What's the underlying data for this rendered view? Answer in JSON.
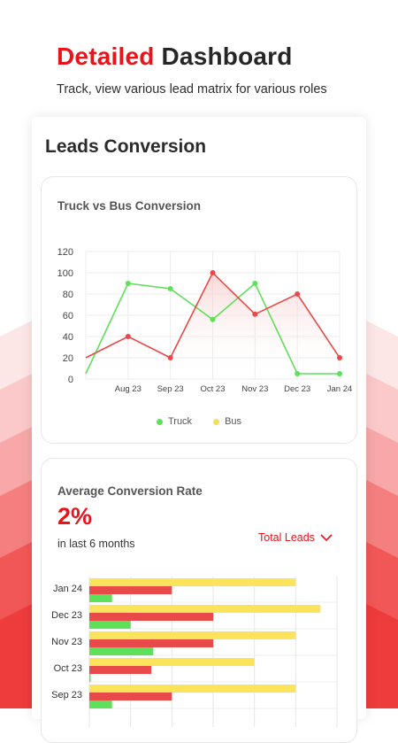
{
  "header": {
    "title_accent": "Detailed",
    "title_rest": "Dashboard",
    "subtitle": "Track, view various lead matrix for various roles"
  },
  "card": {
    "title": "Leads Conversion"
  },
  "colors": {
    "accent": "#e8141b",
    "truck": "#5ee05a",
    "bus": "#e84a4a",
    "bus_legend": "#f7dc5a",
    "total_leads_bar": "#fbe35c"
  },
  "line_chart": {
    "title": "Truck vs Bus Conversion",
    "legend": [
      {
        "label": "Truck",
        "color": "#5ee05a"
      },
      {
        "label": "Bus",
        "color": "#f7dc5a"
      }
    ]
  },
  "rate_panel": {
    "title": "Average Conversion Rate",
    "value": "2%",
    "caption": "in last 6 months",
    "dropdown_label": "Total Leads",
    "dropdown_icon": "chevron-down-icon"
  },
  "chart_data": [
    {
      "type": "line",
      "title": "Truck vs Bus Conversion",
      "x": [
        "",
        "Aug 23",
        "Sep 23",
        "Oct 23",
        "Nov 23",
        "Dec 23",
        "Jan 24"
      ],
      "xtick_labels": [
        "Aug 23",
        "Sep 23",
        "Oct 23",
        "Nov 23",
        "Dec 23",
        "Jan 24"
      ],
      "yticks": [
        0,
        20,
        40,
        60,
        80,
        100,
        120
      ],
      "ylim": [
        0,
        120
      ],
      "grid": true,
      "legend_position": "bottom",
      "series": [
        {
          "name": "Truck",
          "values": [
            5,
            90,
            85,
            56,
            90,
            5,
            5
          ]
        },
        {
          "name": "Bus",
          "values": [
            20,
            40,
            20,
            100,
            61,
            80,
            20
          ]
        }
      ]
    },
    {
      "type": "bar",
      "orientation": "horizontal",
      "categories": [
        "Jan 24",
        "Dec 23",
        "Nov 23",
        "Oct 23",
        "Sep 23"
      ],
      "series": [
        {
          "values": [
            100,
            112,
            100,
            80,
            100
          ]
        },
        {
          "values": [
            40,
            60,
            60,
            30,
            40
          ]
        },
        {
          "values": [
            11,
            20,
            31,
            0,
            11
          ]
        }
      ],
      "xlim": [
        0,
        120
      ],
      "grid": true
    }
  ]
}
